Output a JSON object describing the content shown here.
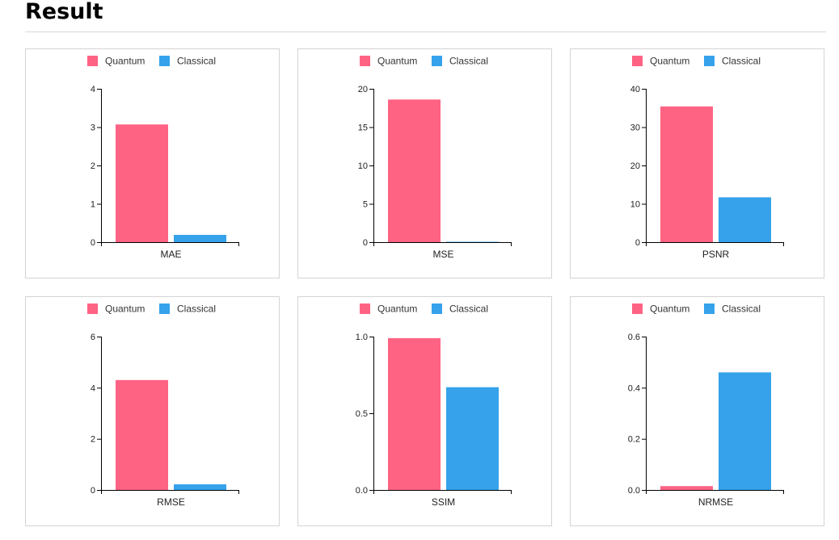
{
  "page": {
    "title": "Result"
  },
  "chart_data": [
    {
      "type": "bar",
      "categories": [
        "MAE"
      ],
      "ylim": [
        0,
        4
      ],
      "yticks": [
        "0",
        "1",
        "2",
        "3",
        "4"
      ],
      "series": [
        {
          "name": "Quantum",
          "color": "#ff6384",
          "values": [
            3.07
          ]
        },
        {
          "name": "Classical",
          "color": "#36a2eb",
          "values": [
            0.19
          ]
        }
      ],
      "legend": "top-center",
      "grid": false
    },
    {
      "type": "bar",
      "categories": [
        "MSE"
      ],
      "ylim": [
        0,
        20
      ],
      "yticks": [
        "0",
        "5",
        "10",
        "15",
        "20"
      ],
      "series": [
        {
          "name": "Quantum",
          "color": "#ff6384",
          "values": [
            18.6
          ]
        },
        {
          "name": "Classical",
          "color": "#36a2eb",
          "values": [
            0.05
          ]
        }
      ],
      "legend": "top-center",
      "grid": false
    },
    {
      "type": "bar",
      "categories": [
        "PSNR"
      ],
      "ylim": [
        0,
        40
      ],
      "yticks": [
        "0",
        "10",
        "20",
        "30",
        "40"
      ],
      "series": [
        {
          "name": "Quantum",
          "color": "#ff6384",
          "values": [
            35.4
          ]
        },
        {
          "name": "Classical",
          "color": "#36a2eb",
          "values": [
            11.7
          ]
        }
      ],
      "legend": "top-center",
      "grid": false
    },
    {
      "type": "bar",
      "categories": [
        "RMSE"
      ],
      "ylim": [
        0,
        6
      ],
      "yticks": [
        "0",
        "2",
        "4",
        "6"
      ],
      "series": [
        {
          "name": "Quantum",
          "color": "#ff6384",
          "values": [
            4.3
          ]
        },
        {
          "name": "Classical",
          "color": "#36a2eb",
          "values": [
            0.22
          ]
        }
      ],
      "legend": "top-center",
      "grid": false
    },
    {
      "type": "bar",
      "categories": [
        "SSIM"
      ],
      "ylim": [
        0,
        1
      ],
      "yticks": [
        "0.0",
        "0.5",
        "1.0"
      ],
      "series": [
        {
          "name": "Quantum",
          "color": "#ff6384",
          "values": [
            0.99
          ]
        },
        {
          "name": "Classical",
          "color": "#36a2eb",
          "values": [
            0.67
          ]
        }
      ],
      "legend": "top-center",
      "grid": false
    },
    {
      "type": "bar",
      "categories": [
        "NRMSE"
      ],
      "ylim": [
        0,
        0.6
      ],
      "yticks": [
        "0.0",
        "0.2",
        "0.4",
        "0.6"
      ],
      "series": [
        {
          "name": "Quantum",
          "color": "#ff6384",
          "values": [
            0.015
          ]
        },
        {
          "name": "Classical",
          "color": "#36a2eb",
          "values": [
            0.46
          ]
        }
      ],
      "legend": "top-center",
      "grid": false
    }
  ]
}
